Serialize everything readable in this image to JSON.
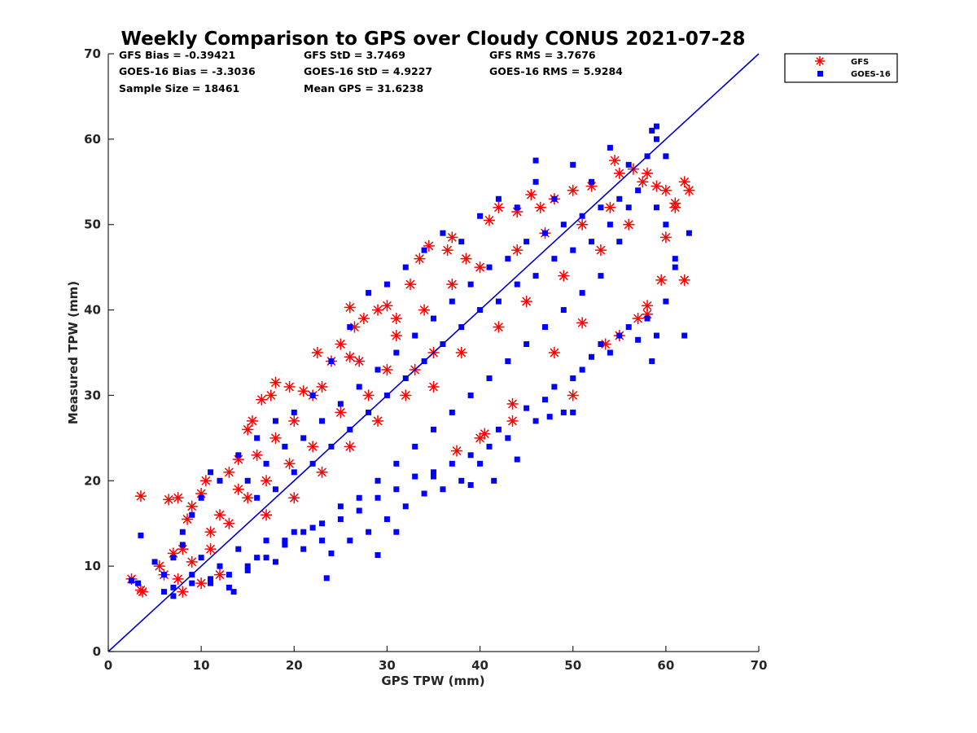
{
  "chart_data": {
    "type": "scatter",
    "title": "Weekly Comparison to GPS over Cloudy CONUS 2021-07-28",
    "xlabel": "GPS TPW (mm)",
    "ylabel": "Measured TPW (mm)",
    "xlim": [
      0,
      70
    ],
    "ylim": [
      0,
      70
    ],
    "xticks": [
      "0",
      "10",
      "20",
      "30",
      "40",
      "50",
      "60",
      "70"
    ],
    "yticks": [
      "0",
      "10",
      "20",
      "30",
      "40",
      "50",
      "60",
      "70"
    ],
    "grid": false,
    "legend_position": "outside-top-right",
    "reference_line": {
      "from": [
        0,
        0
      ],
      "to": [
        70,
        70
      ],
      "color": "#0000cc"
    },
    "stats": [
      "GFS Bias = -0.39421",
      "GFS StD = 3.7469",
      "GFS RMS = 3.7676",
      "GOES-16 Bias = -3.3036",
      "GOES-16 StD = 4.9227",
      "GOES-16 RMS = 5.9284",
      "Sample Size = 18461",
      "Mean GPS = 31.6238"
    ],
    "series": [
      {
        "name": "GFS",
        "marker": "asterisk",
        "color": "#ff0000",
        "points": [
          [
            2.5,
            8.5
          ],
          [
            3.5,
            7.2
          ],
          [
            3.7,
            7.0
          ],
          [
            3.5,
            18.2
          ],
          [
            6.5,
            17.8
          ],
          [
            7.5,
            18.0
          ],
          [
            5.5,
            10.0
          ],
          [
            6.0,
            9.0
          ],
          [
            7.0,
            11.5
          ],
          [
            8.0,
            12.0
          ],
          [
            8.5,
            15.5
          ],
          [
            9.0,
            17.0
          ],
          [
            10.0,
            18.5
          ],
          [
            10.5,
            20.0
          ],
          [
            11.0,
            14.0
          ],
          [
            12.0,
            16.0
          ],
          [
            13.0,
            21.0
          ],
          [
            14.0,
            22.5
          ],
          [
            15.0,
            26.0
          ],
          [
            15.5,
            27.0
          ],
          [
            16.5,
            29.5
          ],
          [
            17.5,
            30.0
          ],
          [
            18.0,
            31.5
          ],
          [
            19.5,
            31.0
          ],
          [
            21.0,
            30.5
          ],
          [
            22.0,
            30.0
          ],
          [
            22.5,
            35.0
          ],
          [
            24.0,
            34.0
          ],
          [
            25.0,
            36.0
          ],
          [
            26.0,
            34.5
          ],
          [
            26.5,
            38.0
          ],
          [
            26.0,
            40.3
          ],
          [
            27.5,
            39.0
          ],
          [
            29.0,
            40.0
          ],
          [
            30.0,
            40.5
          ],
          [
            31.0,
            39.0
          ],
          [
            32.5,
            43.0
          ],
          [
            33.5,
            46.0
          ],
          [
            34.5,
            47.5
          ],
          [
            36.5,
            47.0
          ],
          [
            37.0,
            48.5
          ],
          [
            38.5,
            46.0
          ],
          [
            41.0,
            50.5
          ],
          [
            42.0,
            52.0
          ],
          [
            44.0,
            51.5
          ],
          [
            45.5,
            53.5
          ],
          [
            46.5,
            52.0
          ],
          [
            48.0,
            53.0
          ],
          [
            50.0,
            54.0
          ],
          [
            52.0,
            54.5
          ],
          [
            54.5,
            57.5
          ],
          [
            55.0,
            56.0
          ],
          [
            56.5,
            56.5
          ],
          [
            57.5,
            55.0
          ],
          [
            58.0,
            56.0
          ],
          [
            59.0,
            54.5
          ],
          [
            60.0,
            54.0
          ],
          [
            61.0,
            52.5
          ],
          [
            62.0,
            55.0
          ],
          [
            62.5,
            54.0
          ],
          [
            61.0,
            52.0
          ],
          [
            60.0,
            48.5
          ],
          [
            59.5,
            43.5
          ],
          [
            62.0,
            43.5
          ],
          [
            58.0,
            40.5
          ],
          [
            58.0,
            39.5
          ],
          [
            57.0,
            39.0
          ],
          [
            55.0,
            37.0
          ],
          [
            53.5,
            36.0
          ],
          [
            51.0,
            38.5
          ],
          [
            48.0,
            35.0
          ],
          [
            50.0,
            30.0
          ],
          [
            43.5,
            29.0
          ],
          [
            43.5,
            27.0
          ],
          [
            40.5,
            25.5
          ],
          [
            40.0,
            25.0
          ],
          [
            37.5,
            23.5
          ],
          [
            35.0,
            31.0
          ],
          [
            33.0,
            33.0
          ],
          [
            30.0,
            33.0
          ],
          [
            28.0,
            30.0
          ],
          [
            25.0,
            28.0
          ],
          [
            22.0,
            24.0
          ],
          [
            19.5,
            22.0
          ],
          [
            17.0,
            20.0
          ],
          [
            15.0,
            18.0
          ],
          [
            13.0,
            15.0
          ],
          [
            11.0,
            12.0
          ],
          [
            9.0,
            10.5
          ],
          [
            7.5,
            8.5
          ],
          [
            14.0,
            19.0
          ],
          [
            16.0,
            23.0
          ],
          [
            18.0,
            25.0
          ],
          [
            20.0,
            27.0
          ],
          [
            23.0,
            31.0
          ],
          [
            27.0,
            34.0
          ],
          [
            31.0,
            37.0
          ],
          [
            34.0,
            40.0
          ],
          [
            37.0,
            43.0
          ],
          [
            40.0,
            45.0
          ],
          [
            44.0,
            47.0
          ],
          [
            47.0,
            49.0
          ],
          [
            51.0,
            50.0
          ],
          [
            54.0,
            52.0
          ],
          [
            56.0,
            50.0
          ],
          [
            53.0,
            47.0
          ],
          [
            49.0,
            44.0
          ],
          [
            45.0,
            41.0
          ],
          [
            42.0,
            38.0
          ],
          [
            38.0,
            35.0
          ],
          [
            35.0,
            35.0
          ],
          [
            32.0,
            30.0
          ],
          [
            29.0,
            27.0
          ],
          [
            26.0,
            24.0
          ],
          [
            23.0,
            21.0
          ],
          [
            20.0,
            18.0
          ],
          [
            17.0,
            16.0
          ],
          [
            12.0,
            9.0
          ],
          [
            10.0,
            8.0
          ],
          [
            8.0,
            7.0
          ]
        ]
      },
      {
        "name": "GOES-16",
        "marker": "square",
        "color": "#0000ff",
        "points": [
          [
            2.5,
            8.3
          ],
          [
            3.5,
            13.6
          ],
          [
            3.2,
            8.0
          ],
          [
            5.0,
            10.5
          ],
          [
            6.0,
            7.0
          ],
          [
            7.0,
            7.5
          ],
          [
            8.0,
            12.5
          ],
          [
            9.0,
            9.0
          ],
          [
            10.0,
            11.0
          ],
          [
            11.0,
            8.0
          ],
          [
            12.0,
            10.0
          ],
          [
            13.0,
            7.5
          ],
          [
            14.0,
            12.0
          ],
          [
            15.0,
            9.5
          ],
          [
            16.0,
            11.0
          ],
          [
            17.0,
            13.0
          ],
          [
            18.0,
            10.5
          ],
          [
            19.0,
            12.5
          ],
          [
            20.0,
            14.0
          ],
          [
            21.0,
            12.0
          ],
          [
            22.0,
            14.5
          ],
          [
            23.0,
            13.0
          ],
          [
            23.5,
            8.6
          ],
          [
            24.0,
            11.5
          ],
          [
            25.0,
            15.5
          ],
          [
            26.0,
            13.0
          ],
          [
            27.0,
            16.5
          ],
          [
            28.0,
            14.0
          ],
          [
            29.0,
            18.0
          ],
          [
            30.0,
            15.5
          ],
          [
            29.0,
            11.3
          ],
          [
            31.0,
            19.0
          ],
          [
            32.0,
            17.0
          ],
          [
            33.0,
            20.5
          ],
          [
            34.0,
            18.5
          ],
          [
            35.0,
            21.0
          ],
          [
            36.0,
            19.0
          ],
          [
            37.0,
            22.0
          ],
          [
            38.0,
            20.0
          ],
          [
            39.0,
            23.0
          ],
          [
            40.0,
            22.0
          ],
          [
            41.0,
            24.0
          ],
          [
            42.0,
            26.0
          ],
          [
            43.0,
            25.0
          ],
          [
            44.0,
            22.5
          ],
          [
            45.0,
            28.5
          ],
          [
            46.0,
            27.0
          ],
          [
            47.0,
            29.5
          ],
          [
            48.0,
            31.0
          ],
          [
            49.0,
            28.0
          ],
          [
            50.0,
            32.0
          ],
          [
            51.0,
            33.0
          ],
          [
            52.0,
            34.5
          ],
          [
            53.0,
            36.0
          ],
          [
            54.0,
            35.0
          ],
          [
            55.0,
            37.0
          ],
          [
            56.0,
            38.0
          ],
          [
            57.0,
            36.5
          ],
          [
            58.0,
            39.0
          ],
          [
            58.5,
            34.0
          ],
          [
            59.0,
            37.0
          ],
          [
            60.0,
            41.0
          ],
          [
            61.0,
            46.0
          ],
          [
            62.0,
            37.0
          ],
          [
            62.5,
            49.0
          ],
          [
            61.0,
            45.0
          ],
          [
            60.0,
            50.0
          ],
          [
            59.0,
            52.0
          ],
          [
            58.0,
            58.0
          ],
          [
            58.5,
            61.0
          ],
          [
            59.0,
            61.5
          ],
          [
            59.0,
            60.0
          ],
          [
            60.0,
            58.0
          ],
          [
            56.0,
            57.0
          ],
          [
            54.0,
            59.0
          ],
          [
            52.0,
            55.0
          ],
          [
            50.0,
            57.0
          ],
          [
            48.0,
            53.0
          ],
          [
            46.0,
            55.0
          ],
          [
            44.0,
            52.0
          ],
          [
            42.0,
            53.0
          ],
          [
            40.0,
            51.0
          ],
          [
            38.0,
            48.0
          ],
          [
            36.0,
            49.0
          ],
          [
            34.0,
            47.0
          ],
          [
            32.0,
            45.0
          ],
          [
            30.0,
            43.0
          ],
          [
            28.0,
            42.0
          ],
          [
            26.0,
            38.0
          ],
          [
            24.0,
            34.0
          ],
          [
            22.0,
            30.0
          ],
          [
            20.0,
            28.0
          ],
          [
            18.0,
            27.0
          ],
          [
            16.0,
            25.0
          ],
          [
            14.0,
            23.0
          ],
          [
            12.0,
            20.0
          ],
          [
            11.0,
            21.0
          ],
          [
            10.0,
            18.0
          ],
          [
            9.0,
            16.0
          ],
          [
            8.0,
            14.0
          ],
          [
            7.0,
            11.0
          ],
          [
            6.0,
            9.0
          ],
          [
            15.0,
            20.0
          ],
          [
            17.0,
            22.0
          ],
          [
            19.0,
            24.0
          ],
          [
            21.0,
            25.0
          ],
          [
            23.0,
            27.0
          ],
          [
            25.0,
            29.0
          ],
          [
            27.0,
            31.0
          ],
          [
            29.0,
            33.0
          ],
          [
            31.0,
            35.0
          ],
          [
            33.0,
            37.0
          ],
          [
            35.0,
            39.0
          ],
          [
            37.0,
            41.0
          ],
          [
            39.0,
            43.0
          ],
          [
            41.0,
            45.0
          ],
          [
            43.0,
            46.0
          ],
          [
            45.0,
            48.0
          ],
          [
            47.0,
            49.0
          ],
          [
            49.0,
            50.0
          ],
          [
            51.0,
            51.0
          ],
          [
            53.0,
            52.0
          ],
          [
            55.0,
            53.0
          ],
          [
            57.0,
            54.0
          ],
          [
            55.0,
            48.0
          ],
          [
            53.0,
            44.0
          ],
          [
            51.0,
            42.0
          ],
          [
            49.0,
            40.0
          ],
          [
            47.0,
            38.0
          ],
          [
            45.0,
            36.0
          ],
          [
            43.0,
            34.0
          ],
          [
            41.0,
            32.0
          ],
          [
            39.0,
            30.0
          ],
          [
            37.0,
            28.0
          ],
          [
            35.0,
            26.0
          ],
          [
            33.0,
            24.0
          ],
          [
            31.0,
            22.0
          ],
          [
            29.0,
            20.0
          ],
          [
            27.0,
            18.0
          ],
          [
            25.0,
            17.0
          ],
          [
            23.0,
            15.0
          ],
          [
            21.0,
            14.0
          ],
          [
            19.0,
            13.0
          ],
          [
            17.0,
            11.0
          ],
          [
            15.0,
            10.0
          ],
          [
            13.0,
            9.0
          ],
          [
            11.0,
            8.5
          ],
          [
            9.0,
            8.0
          ],
          [
            7.0,
            6.5
          ],
          [
            13.5,
            7.0
          ],
          [
            16.0,
            18.0
          ],
          [
            18.0,
            19.0
          ],
          [
            20.0,
            21.0
          ],
          [
            22.0,
            22.0
          ],
          [
            24.0,
            24.0
          ],
          [
            26.0,
            26.0
          ],
          [
            28.0,
            28.0
          ],
          [
            30.0,
            30.0
          ],
          [
            32.0,
            32.0
          ],
          [
            34.0,
            34.0
          ],
          [
            36.0,
            36.0
          ],
          [
            38.0,
            38.0
          ],
          [
            40.0,
            40.0
          ],
          [
            42.0,
            41.0
          ],
          [
            44.0,
            43.0
          ],
          [
            46.0,
            44.0
          ],
          [
            48.0,
            46.0
          ],
          [
            50.0,
            47.0
          ],
          [
            52.0,
            48.0
          ],
          [
            54.0,
            50.0
          ],
          [
            56.0,
            52.0
          ],
          [
            46.0,
            57.5
          ],
          [
            50.0,
            28.0
          ],
          [
            47.5,
            27.5
          ],
          [
            41.5,
            20.0
          ],
          [
            39.0,
            19.5
          ],
          [
            35.0,
            20.5
          ],
          [
            31.0,
            14.0
          ]
        ]
      }
    ]
  }
}
